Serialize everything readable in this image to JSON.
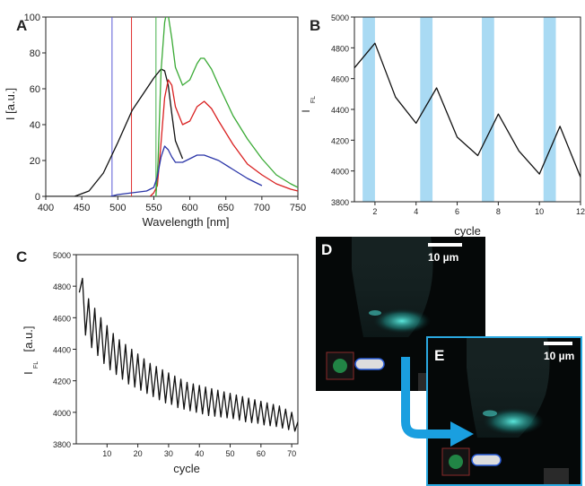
{
  "chart_data": [
    {
      "panel": "A",
      "type": "line",
      "xlabel": "Wavelength [nm]",
      "ylabel": "I [a.u.]",
      "xlim": [
        400,
        750
      ],
      "ylim": [
        0,
        100
      ],
      "xticks": [
        400,
        450,
        500,
        550,
        600,
        650,
        700,
        750
      ],
      "yticks": [
        0,
        20,
        40,
        60,
        80,
        100
      ],
      "vlines": [
        {
          "x": 492,
          "color": "#5b5bd6"
        },
        {
          "x": 519,
          "color": "#e03030"
        },
        {
          "x": 553,
          "color": "#44b04a"
        }
      ],
      "series": [
        {
          "color": "#111111",
          "x": [
            400,
            420,
            440,
            460,
            480,
            500,
            520,
            540,
            550,
            560,
            565,
            570,
            575,
            580,
            590
          ],
          "y": [
            0,
            0,
            0,
            3,
            13,
            30,
            48,
            60,
            66,
            71,
            70,
            62,
            46,
            31,
            21
          ]
        },
        {
          "color": "#d92020",
          "x": [
            545,
            550,
            555,
            560,
            565,
            570,
            575,
            580,
            590,
            600,
            610,
            620,
            630,
            640,
            660,
            680,
            700,
            720,
            740,
            750
          ],
          "y": [
            0,
            2,
            6,
            30,
            55,
            65,
            62,
            50,
            40,
            42,
            50,
            53,
            49,
            42,
            29,
            18,
            12,
            7,
            4,
            3
          ]
        },
        {
          "color": "#3aaa35",
          "x": [
            553,
            556,
            560,
            565,
            568,
            570,
            575,
            580,
            590,
            600,
            610,
            615,
            620,
            630,
            640,
            660,
            680,
            700,
            720,
            740,
            750
          ],
          "y": [
            0,
            20,
            70,
            97,
            103,
            101,
            88,
            72,
            62,
            65,
            74,
            77,
            77,
            71,
            62,
            45,
            32,
            21,
            12,
            7,
            5
          ]
        },
        {
          "color": "#2a35a8",
          "x": [
            490,
            500,
            520,
            540,
            550,
            555,
            560,
            565,
            570,
            575,
            580,
            590,
            600,
            610,
            620,
            640,
            660,
            680,
            700
          ],
          "y": [
            0,
            1,
            2,
            3,
            5,
            11,
            22,
            28,
            26,
            22,
            19,
            19,
            21,
            23,
            23,
            20,
            15,
            10,
            6
          ]
        }
      ]
    },
    {
      "panel": "B",
      "type": "line",
      "xlabel": "cycle",
      "ylabel": "I",
      "ylabel_sub": "FL",
      "xlim": [
        1,
        12
      ],
      "ylim": [
        3800,
        5000
      ],
      "xticks": [
        2,
        4,
        6,
        8,
        10,
        12
      ],
      "yticks": [
        3800,
        4000,
        4200,
        4400,
        4600,
        4800,
        5000
      ],
      "highlight_bands": [
        [
          1.4,
          2.0
        ],
        [
          4.2,
          4.8
        ],
        [
          7.2,
          7.8
        ],
        [
          10.2,
          10.8
        ]
      ],
      "series": [
        {
          "color": "#111111",
          "x": [
            1,
            2,
            3,
            4,
            5,
            6,
            7,
            8,
            9,
            10,
            11,
            12
          ],
          "y": [
            4670,
            4830,
            4480,
            4310,
            4540,
            4220,
            4100,
            4370,
            4130,
            3980,
            4290,
            3960
          ]
        }
      ]
    },
    {
      "panel": "C",
      "type": "line",
      "xlabel": "cycle",
      "ylabel": "I",
      "ylabel_sub": "FL",
      "ylabel_unit": "[a.u.]",
      "xlim": [
        0,
        72
      ],
      "ylim": [
        3800,
        5000
      ],
      "xticks": [
        10,
        20,
        30,
        40,
        50,
        60,
        70
      ],
      "yticks": [
        3800,
        4000,
        4200,
        4400,
        4600,
        4800,
        5000
      ],
      "series": [
        {
          "color": "#111111",
          "x": [
            1,
            2,
            3,
            4,
            5,
            6,
            7,
            8,
            9,
            10,
            11,
            12,
            13,
            14,
            15,
            16,
            17,
            18,
            19,
            20,
            21,
            22,
            23,
            24,
            25,
            26,
            27,
            28,
            29,
            30,
            31,
            32,
            33,
            34,
            35,
            36,
            37,
            38,
            39,
            40,
            41,
            42,
            43,
            44,
            45,
            46,
            47,
            48,
            49,
            50,
            51,
            52,
            53,
            54,
            55,
            56,
            57,
            58,
            59,
            60,
            61,
            62,
            63,
            64,
            65,
            66,
            67,
            68,
            69,
            70,
            71,
            72
          ],
          "y": [
            4760,
            4850,
            4490,
            4720,
            4410,
            4660,
            4360,
            4600,
            4310,
            4550,
            4270,
            4500,
            4240,
            4460,
            4210,
            4430,
            4180,
            4400,
            4160,
            4370,
            4140,
            4340,
            4120,
            4310,
            4100,
            4290,
            4080,
            4270,
            4060,
            4250,
            4050,
            4230,
            4030,
            4210,
            4020,
            4190,
            4010,
            4180,
            4000,
            4170,
            3990,
            4160,
            3980,
            4150,
            3975,
            4140,
            3970,
            4130,
            3965,
            4120,
            3960,
            4110,
            3950,
            4100,
            3940,
            4090,
            3935,
            4080,
            3930,
            4070,
            3920,
            4060,
            3915,
            4050,
            3910,
            4040,
            3900,
            4020,
            3890,
            4000,
            3880,
            3940
          ]
        }
      ]
    }
  ],
  "micrographs": {
    "D": {
      "letter": "D",
      "scalebar": "10 µm"
    },
    "E": {
      "letter": "E",
      "scalebar": "10 µm"
    }
  },
  "colors": {
    "band": "#a9daf3",
    "arrow": "#1a9fe0",
    "e_border": "#2aa8e0",
    "cyan_emission": "#3fd9cf"
  }
}
